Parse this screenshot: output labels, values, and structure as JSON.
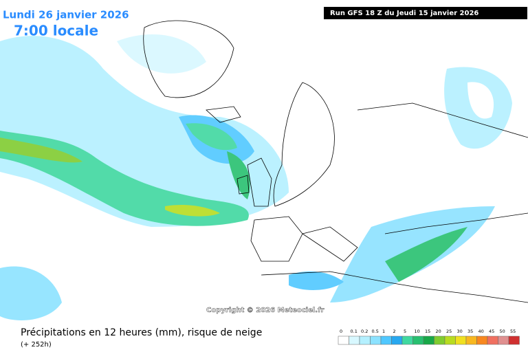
{
  "header": {
    "date": "Lundi 26 janvier 2026",
    "time": "7:00 locale",
    "run": "Run GFS 18 Z du Jeudi 15 janvier 2026"
  },
  "copyright": "Copyright © 2026 Meteociel.fr",
  "footer": {
    "title": "Précipitations en 12 heures (mm), risque de neige",
    "lead": "(+ 252h)"
  },
  "legend": {
    "ticks": [
      0,
      0.1,
      0.2,
      0.5,
      1,
      2,
      5,
      10,
      15,
      20,
      25,
      30,
      35,
      40,
      45,
      50,
      55
    ],
    "colors": [
      "#ffffff",
      "#d8f8ff",
      "#b4f0ff",
      "#8ce2ff",
      "#50c8ff",
      "#28a8f0",
      "#40d8a0",
      "#28c070",
      "#18a848",
      "#80cc30",
      "#b8dc20",
      "#f0e020",
      "#f8b820",
      "#f88820",
      "#f07060",
      "#e09090",
      "#d03030"
    ]
  }
}
